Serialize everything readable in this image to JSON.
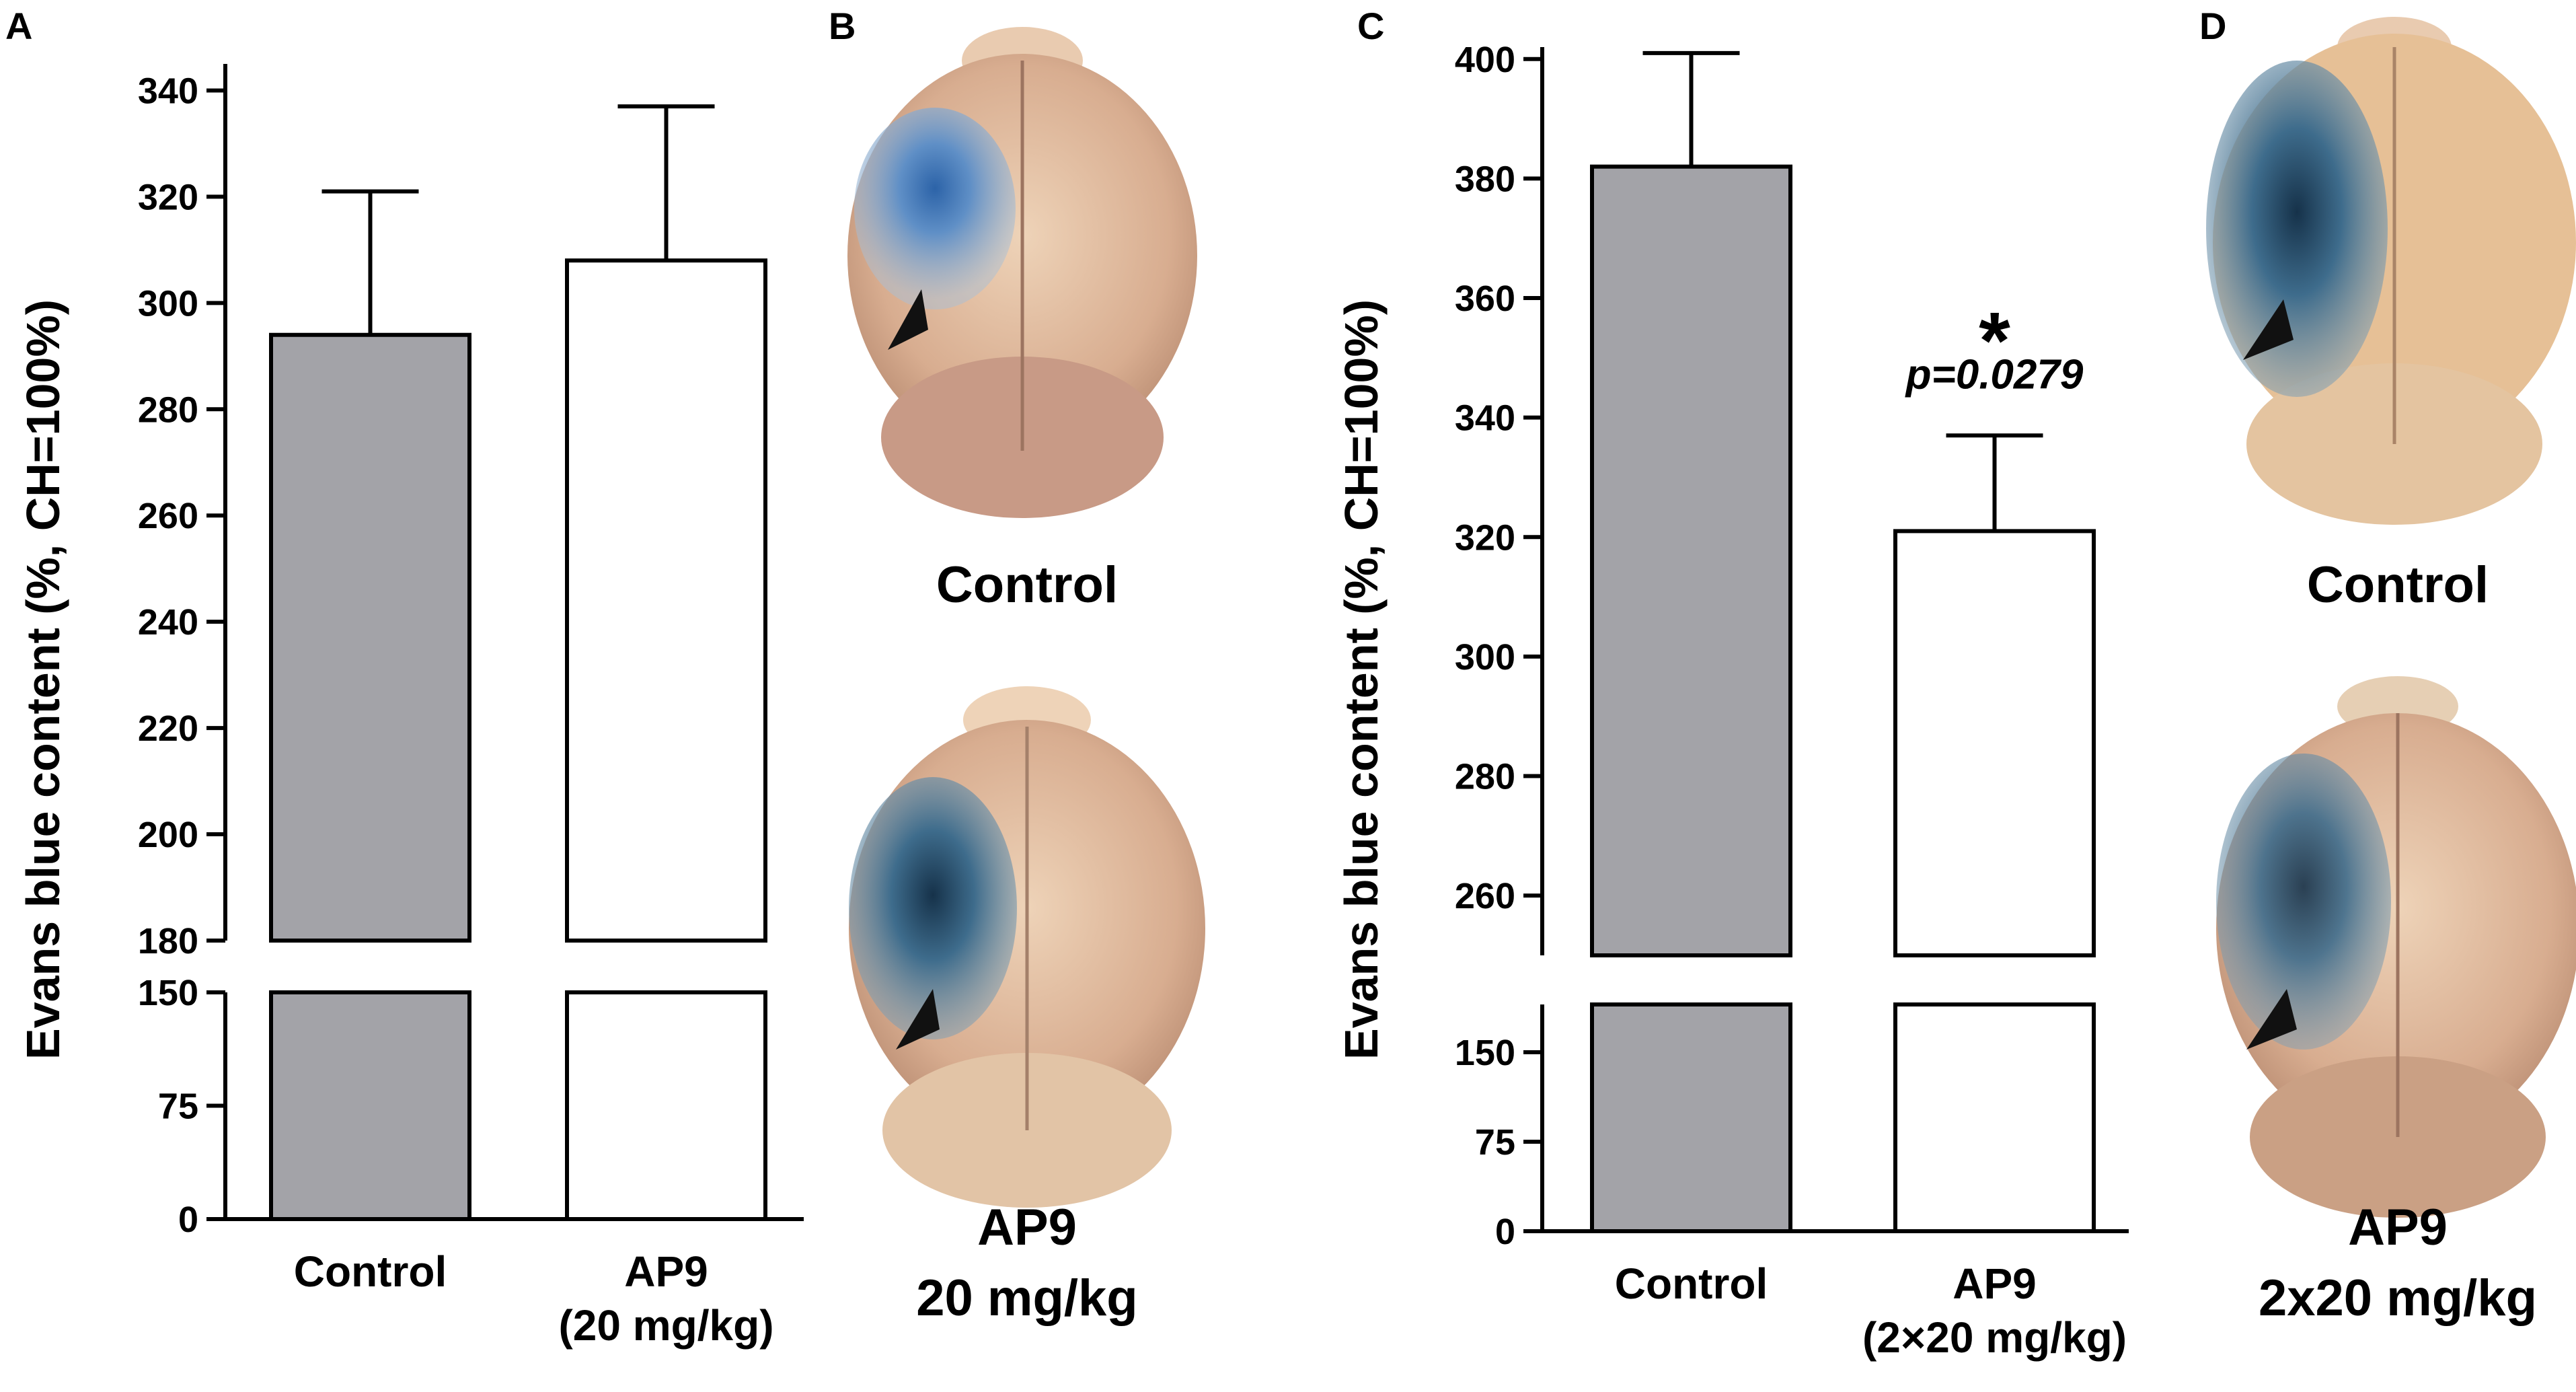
{
  "panels": {
    "a_label": "A",
    "b_label": "B",
    "c_label": "C",
    "d_label": "D"
  },
  "colors": {
    "control_bar": "#a3a3a8",
    "treated_bar": "#ffffff",
    "axis": "#000000",
    "brain_tissue": "#d8ad90",
    "brain_tissue_light": "#e9cbb0",
    "evans_blue": "#3e6c8c",
    "evans_blue_dark": "#16324a"
  },
  "chart_data": [
    {
      "type": "bar",
      "panel": "A",
      "title": "",
      "ylabel": "Evans blue content (%, CH=100%)",
      "xlabel": "",
      "categories": [
        "Control",
        "AP9\n(20 mg/kg)"
      ],
      "category_lines": [
        [
          "Control"
        ],
        [
          "AP9",
          "(20 mg/kg)"
        ]
      ],
      "values": [
        294,
        308
      ],
      "errors": [
        27,
        29
      ],
      "broken_axis": true,
      "lower_range": [
        0,
        150
      ],
      "upper_range": [
        180,
        345
      ],
      "ticks_lower": [
        0,
        75,
        150
      ],
      "ticks_upper": [
        180,
        200,
        220,
        240,
        260,
        280,
        300,
        320,
        340
      ],
      "annotations": []
    },
    {
      "type": "bar",
      "panel": "C",
      "title": "",
      "ylabel": "Evans blue content (%, CH=100%)",
      "xlabel": "",
      "categories": [
        "Control",
        "AP9\n(2×20 mg/kg)"
      ],
      "category_lines": [
        [
          "Control"
        ],
        [
          "AP9",
          "(2×20 mg/kg)"
        ]
      ],
      "values": [
        382,
        321
      ],
      "errors": [
        19,
        16
      ],
      "broken_axis": true,
      "lower_range": [
        0,
        190
      ],
      "upper_range": [
        250,
        402
      ],
      "ticks_lower": [
        0,
        75,
        150
      ],
      "ticks_upper": [
        260,
        280,
        300,
        320,
        340,
        360,
        380,
        400
      ],
      "annotations": [
        {
          "text": "*",
          "category": 1,
          "style": "asterisk"
        },
        {
          "text": "p=0.0279",
          "category": 1,
          "style": "italic"
        }
      ]
    }
  ],
  "photos": {
    "b_top_caption": "Control",
    "b_bottom_caption_1": "AP9",
    "b_bottom_caption_2": "20 mg/kg",
    "d_top_caption": "Control",
    "d_bottom_caption_1": "AP9",
    "d_bottom_caption_2": "2x20 mg/kg"
  }
}
